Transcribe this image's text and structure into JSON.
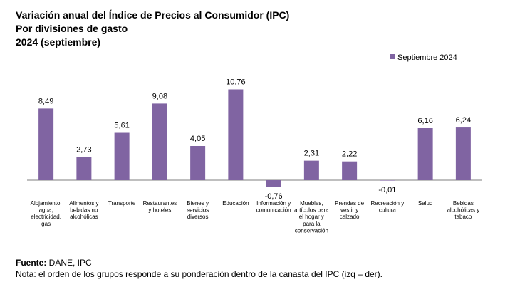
{
  "title": {
    "line1": "Variación anual del Índice de Precios al Consumidor (IPC)",
    "line2": "Por divisiones de gasto",
    "line3": "2024 (septiembre)"
  },
  "colors": {
    "bar": "#8064A2",
    "axis": "#7f7f7f"
  },
  "chart_data": {
    "type": "bar",
    "title": "Variación anual del Índice de Precios al Consumidor (IPC)",
    "categories": [
      [
        "Alojamiento,",
        "agua,",
        "electricidad,",
        "gas"
      ],
      [
        "Alimentos y",
        "bebidas no",
        "alcohólicas"
      ],
      [
        "Transporte"
      ],
      [
        "Restaurantes",
        "y hoteles"
      ],
      [
        "Bienes y",
        "servicios",
        "diversos"
      ],
      [
        "Educación"
      ],
      [
        "Información y",
        "comunicación"
      ],
      [
        "Muebles,",
        "artículos para",
        "el hogar y",
        "para la",
        "conservación"
      ],
      [
        "Prendas de",
        "vestir y",
        "calzado"
      ],
      [
        "Recreación y",
        "cultura"
      ],
      [
        "Salud"
      ],
      [
        "Bebidas",
        "alcohólicas y",
        "tabaco"
      ]
    ],
    "series": [
      {
        "name": "Septiembre 2024",
        "values": [
          8.49,
          2.73,
          5.61,
          9.08,
          4.05,
          10.76,
          -0.76,
          2.31,
          2.22,
          -0.01,
          6.16,
          6.24
        ],
        "labels": [
          "8,49",
          "2,73",
          "5,61",
          "9,08",
          "4,05",
          "10,76",
          "-0,76",
          "2,31",
          "2,22",
          "-0,01",
          "6,16",
          "6,24"
        ]
      }
    ],
    "xlabel": "",
    "ylabel": "",
    "legend": "top-right",
    "grid": false
  },
  "footer": {
    "source_label": "Fuente:",
    "source_value": " DANE, IPC",
    "note": "Nota: el orden de los grupos responde a su ponderación dentro de la canasta del IPC (izq – der)."
  }
}
